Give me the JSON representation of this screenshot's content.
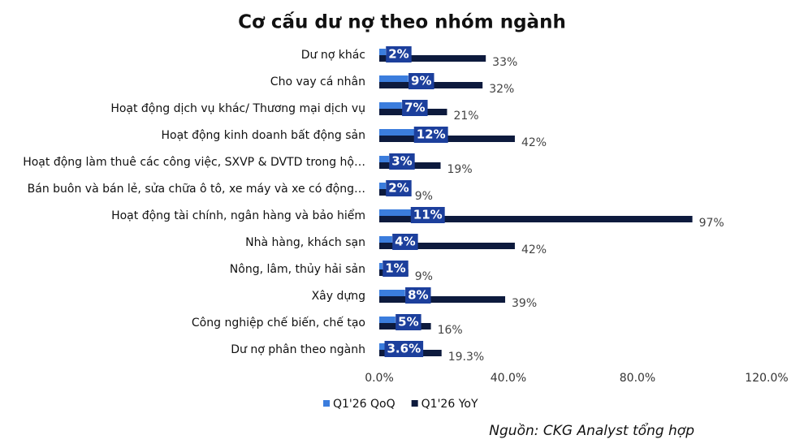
{
  "chart_data": {
    "type": "hbar",
    "title": "Cơ cấu dư nợ theo nhóm ngành",
    "categories": [
      "Dư nợ khác",
      "Cho vay cá nhân",
      "Hoạt động dịch vụ khác/ Thương mại dịch vụ",
      "Hoạt động kinh doanh bất động sản",
      "Hoạt động làm thuê các công việc, SXVP & DVTD trong hộ…",
      "Bán buôn và bán lẻ, sửa chữa ô tô, xe máy và xe có động…",
      "Hoạt động tài chính, ngân hàng và bảo hiểm",
      "Nhà hàng, khách sạn",
      "Nông, lâm, thủy hải sản",
      "Xây dựng",
      "Công nghiệp chế biến, chế tạo",
      "Dư nợ phân theo ngành"
    ],
    "series": [
      {
        "name": "Q1'26 QoQ",
        "color": "#3b7ddd",
        "label_box": "#1c3f9c",
        "values": [
          2,
          9,
          7,
          12,
          3,
          2,
          11,
          4,
          1,
          8,
          5,
          3.6
        ],
        "value_labels": [
          "2%",
          "9%",
          "7%",
          "12%",
          "3%",
          "2%",
          "11%",
          "4%",
          "1%",
          "8%",
          "5%",
          "3.6%"
        ]
      },
      {
        "name": "Q1'26 YoY",
        "color": "#0d1a3d",
        "values": [
          33,
          32,
          21,
          42,
          19,
          9,
          97,
          42,
          9,
          39,
          16,
          19.3
        ],
        "value_labels": [
          "33%",
          "32%",
          "21%",
          "42%",
          "19%",
          "9%",
          "97%",
          "42%",
          "9%",
          "39%",
          "16%",
          "19.3%"
        ]
      }
    ],
    "xlim": [
      0,
      120
    ],
    "xticks": [
      {
        "value": 0,
        "label": "0.0%"
      },
      {
        "value": 40,
        "label": "40.0%"
      },
      {
        "value": 80,
        "label": "80.0%"
      },
      {
        "value": 120,
        "label": "120.0%"
      }
    ],
    "source": "Nguồn: CKG Analyst tổng hợp"
  }
}
